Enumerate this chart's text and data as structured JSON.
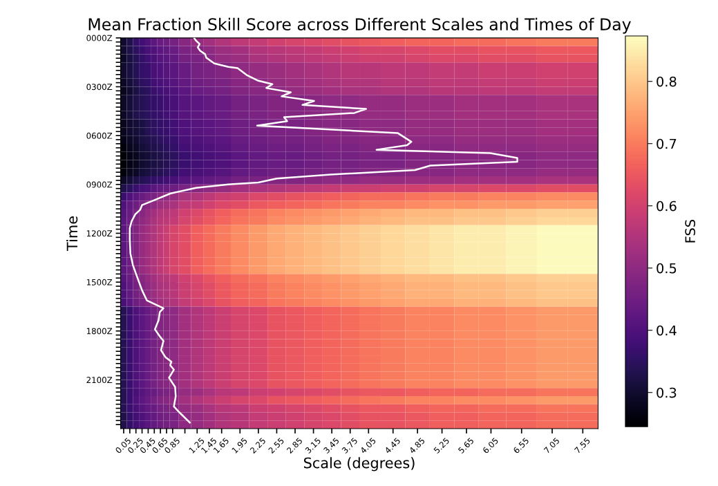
{
  "chart_data": {
    "type": "heatmap",
    "title": "Mean Fraction Skill Score across Different Scales and Times of Day",
    "xlabel": "Scale (degrees)",
    "ylabel": "Time",
    "clabel": "FSS",
    "x": [
      0.05,
      0.15,
      0.25,
      0.35,
      0.45,
      0.55,
      0.65,
      0.75,
      0.85,
      1.05,
      1.25,
      1.45,
      1.65,
      1.95,
      2.25,
      2.55,
      2.85,
      3.15,
      3.45,
      3.75,
      4.05,
      4.45,
      4.85,
      5.25,
      5.65,
      6.05,
      6.55,
      7.05,
      7.55
    ],
    "y": [
      25,
      75,
      125,
      175,
      225,
      275,
      325,
      375,
      425,
      475,
      525,
      575,
      625,
      675,
      725,
      775,
      825,
      875,
      925,
      975,
      1025,
      1075,
      1125,
      1175,
      1225,
      1275,
      1325,
      1375,
      1425,
      1475,
      1525,
      1575,
      1625,
      1675,
      1725,
      1775,
      1825,
      1875,
      1925,
      1975,
      2025,
      2075,
      2125,
      2175,
      2225,
      2275,
      2325,
      2375
    ],
    "xlim": [
      0,
      7.8
    ],
    "ylim": [
      2400,
      0
    ],
    "xticks": [
      0.05,
      {
        "value": 0.15,
        "label": null
      },
      0.25,
      {
        "value": 0.35,
        "label": null
      },
      0.45,
      {
        "value": 0.55,
        "label": null
      },
      0.65,
      {
        "value": 0.75,
        "label": null
      },
      0.85,
      {
        "value": 1.05,
        "label": null
      },
      1.25,
      1.45,
      1.65,
      1.95,
      2.25,
      2.55,
      2.85,
      3.15,
      3.45,
      3.75,
      4.05,
      4.45,
      4.85,
      5.25,
      5.65,
      6.05,
      6.55,
      7.05,
      7.55
    ],
    "yticks": [
      {
        "value": 0,
        "label": "0000Z"
      },
      {
        "value": 25,
        "label": null
      },
      {
        "value": 50,
        "label": null
      },
      {
        "value": 75,
        "label": null
      },
      {
        "value": 100,
        "label": null
      },
      {
        "value": 125,
        "label": null
      },
      {
        "value": 150,
        "label": null
      },
      {
        "value": 175,
        "label": null
      },
      {
        "value": 200,
        "label": null
      },
      {
        "value": 225,
        "label": null
      },
      {
        "value": 250,
        "label": null
      },
      {
        "value": 275,
        "label": null
      },
      {
        "value": 300,
        "label": "0300Z"
      },
      {
        "value": 325,
        "label": null
      },
      {
        "value": 350,
        "label": null
      },
      {
        "value": 375,
        "label": null
      },
      {
        "value": 400,
        "label": null
      },
      {
        "value": 425,
        "label": null
      },
      {
        "value": 450,
        "label": null
      },
      {
        "value": 475,
        "label": null
      },
      {
        "value": 500,
        "label": null
      },
      {
        "value": 525,
        "label": null
      },
      {
        "value": 550,
        "label": null
      },
      {
        "value": 575,
        "label": null
      },
      {
        "value": 600,
        "label": "0600Z"
      },
      {
        "value": 625,
        "label": null
      },
      {
        "value": 650,
        "label": null
      },
      {
        "value": 675,
        "label": null
      },
      {
        "value": 700,
        "label": null
      },
      {
        "value": 725,
        "label": null
      },
      {
        "value": 750,
        "label": null
      },
      {
        "value": 775,
        "label": null
      },
      {
        "value": 800,
        "label": null
      },
      {
        "value": 825,
        "label": null
      },
      {
        "value": 850,
        "label": null
      },
      {
        "value": 875,
        "label": null
      },
      {
        "value": 900,
        "label": "0900Z"
      },
      {
        "value": 925,
        "label": null
      },
      {
        "value": 950,
        "label": null
      },
      {
        "value": 975,
        "label": null
      },
      {
        "value": 1000,
        "label": null
      },
      {
        "value": 1025,
        "label": null
      },
      {
        "value": 1050,
        "label": null
      },
      {
        "value": 1075,
        "label": null
      },
      {
        "value": 1100,
        "label": null
      },
      {
        "value": 1125,
        "label": null
      },
      {
        "value": 1150,
        "label": null
      },
      {
        "value": 1175,
        "label": null
      },
      {
        "value": 1200,
        "label": "1200Z"
      },
      {
        "value": 1225,
        "label": null
      },
      {
        "value": 1250,
        "label": null
      },
      {
        "value": 1275,
        "label": null
      },
      {
        "value": 1300,
        "label": null
      },
      {
        "value": 1325,
        "label": null
      },
      {
        "value": 1350,
        "label": null
      },
      {
        "value": 1375,
        "label": null
      },
      {
        "value": 1400,
        "label": null
      },
      {
        "value": 1425,
        "label": null
      },
      {
        "value": 1450,
        "label": null
      },
      {
        "value": 1475,
        "label": null
      },
      {
        "value": 1500,
        "label": "1500Z"
      },
      {
        "value": 1525,
        "label": null
      },
      {
        "value": 1550,
        "label": null
      },
      {
        "value": 1575,
        "label": null
      },
      {
        "value": 1600,
        "label": null
      },
      {
        "value": 1625,
        "label": null
      },
      {
        "value": 1650,
        "label": null
      },
      {
        "value": 1675,
        "label": null
      },
      {
        "value": 1700,
        "label": null
      },
      {
        "value": 1725,
        "label": null
      },
      {
        "value": 1750,
        "label": null
      },
      {
        "value": 1775,
        "label": null
      },
      {
        "value": 1800,
        "label": "1800Z"
      },
      {
        "value": 1825,
        "label": null
      },
      {
        "value": 1850,
        "label": null
      },
      {
        "value": 1875,
        "label": null
      },
      {
        "value": 1900,
        "label": null
      },
      {
        "value": 1925,
        "label": null
      },
      {
        "value": 1950,
        "label": null
      },
      {
        "value": 1975,
        "label": null
      },
      {
        "value": 2000,
        "label": null
      },
      {
        "value": 2025,
        "label": null
      },
      {
        "value": 2050,
        "label": null
      },
      {
        "value": 2075,
        "label": null
      },
      {
        "value": 2100,
        "label": "2100Z"
      },
      {
        "value": 2125,
        "label": null
      },
      {
        "value": 2150,
        "label": null
      },
      {
        "value": 2175,
        "label": null
      },
      {
        "value": 2200,
        "label": null
      },
      {
        "value": 2225,
        "label": null
      },
      {
        "value": 2250,
        "label": null
      },
      {
        "value": 2275,
        "label": null
      },
      {
        "value": 2300,
        "label": null
      },
      {
        "value": 2325,
        "label": null
      },
      {
        "value": 2350,
        "label": null
      },
      {
        "value": 2375,
        "label": null
      }
    ],
    "clim": [
      0.245,
      0.873
    ],
    "cticks": [
      0.3,
      0.4,
      0.5,
      0.6,
      0.7,
      0.8
    ],
    "cells": [
      [
        0.3,
        0.33,
        0.36,
        0.38,
        0.4,
        0.42,
        0.44,
        0.45,
        0.46,
        0.49,
        0.51,
        0.53,
        0.55,
        0.57,
        0.58,
        0.6,
        0.61,
        0.62,
        0.63,
        0.64,
        0.65,
        0.66,
        0.67,
        0.67,
        0.68,
        0.68,
        0.69,
        0.7,
        0.7
      ],
      [
        0.3,
        0.33,
        0.35,
        0.37,
        0.39,
        0.4,
        0.42,
        0.43,
        0.44,
        0.47,
        0.48,
        0.5,
        0.52,
        0.53,
        0.55,
        0.56,
        0.57,
        0.58,
        0.59,
        0.6,
        0.61,
        0.61,
        0.62,
        0.63,
        0.63,
        0.64,
        0.64,
        0.65,
        0.65
      ],
      [
        0.29,
        0.32,
        0.34,
        0.36,
        0.38,
        0.39,
        0.41,
        0.42,
        0.43,
        0.46,
        0.47,
        0.49,
        0.51,
        0.52,
        0.54,
        0.55,
        0.56,
        0.57,
        0.58,
        0.59,
        0.6,
        0.6,
        0.61,
        0.62,
        0.62,
        0.63,
        0.63,
        0.64,
        0.64
      ],
      [
        0.3,
        0.32,
        0.34,
        0.36,
        0.37,
        0.39,
        0.4,
        0.41,
        0.42,
        0.44,
        0.46,
        0.47,
        0.48,
        0.5,
        0.51,
        0.52,
        0.53,
        0.54,
        0.55,
        0.56,
        0.56,
        0.57,
        0.57,
        0.58,
        0.58,
        0.59,
        0.59,
        0.6,
        0.6
      ],
      [
        0.3,
        0.32,
        0.34,
        0.36,
        0.37,
        0.39,
        0.4,
        0.41,
        0.42,
        0.44,
        0.46,
        0.47,
        0.48,
        0.5,
        0.51,
        0.52,
        0.53,
        0.54,
        0.55,
        0.56,
        0.56,
        0.57,
        0.57,
        0.58,
        0.58,
        0.59,
        0.59,
        0.6,
        0.6
      ],
      [
        0.29,
        0.31,
        0.33,
        0.35,
        0.36,
        0.38,
        0.39,
        0.4,
        0.41,
        0.43,
        0.45,
        0.46,
        0.47,
        0.49,
        0.5,
        0.51,
        0.52,
        0.53,
        0.54,
        0.55,
        0.55,
        0.56,
        0.56,
        0.57,
        0.57,
        0.58,
        0.58,
        0.59,
        0.59
      ],
      [
        0.28,
        0.3,
        0.32,
        0.34,
        0.35,
        0.37,
        0.38,
        0.39,
        0.4,
        0.42,
        0.44,
        0.45,
        0.46,
        0.48,
        0.49,
        0.5,
        0.51,
        0.52,
        0.53,
        0.54,
        0.54,
        0.55,
        0.55,
        0.56,
        0.56,
        0.57,
        0.57,
        0.58,
        0.58
      ],
      [
        0.29,
        0.31,
        0.33,
        0.34,
        0.35,
        0.36,
        0.37,
        0.38,
        0.39,
        0.41,
        0.42,
        0.43,
        0.44,
        0.46,
        0.47,
        0.48,
        0.48,
        0.49,
        0.5,
        0.5,
        0.51,
        0.51,
        0.52,
        0.52,
        0.53,
        0.53,
        0.53,
        0.54,
        0.54
      ],
      [
        0.29,
        0.31,
        0.33,
        0.34,
        0.35,
        0.36,
        0.37,
        0.38,
        0.39,
        0.41,
        0.42,
        0.43,
        0.44,
        0.46,
        0.47,
        0.48,
        0.48,
        0.49,
        0.5,
        0.5,
        0.51,
        0.51,
        0.52,
        0.52,
        0.53,
        0.53,
        0.53,
        0.54,
        0.54
      ],
      [
        0.29,
        0.31,
        0.33,
        0.34,
        0.35,
        0.36,
        0.37,
        0.38,
        0.39,
        0.41,
        0.42,
        0.43,
        0.44,
        0.46,
        0.47,
        0.48,
        0.48,
        0.49,
        0.5,
        0.5,
        0.51,
        0.51,
        0.52,
        0.52,
        0.53,
        0.53,
        0.53,
        0.54,
        0.54
      ],
      [
        0.28,
        0.3,
        0.31,
        0.32,
        0.34,
        0.35,
        0.36,
        0.37,
        0.38,
        0.4,
        0.41,
        0.42,
        0.43,
        0.45,
        0.46,
        0.47,
        0.47,
        0.48,
        0.49,
        0.49,
        0.5,
        0.5,
        0.51,
        0.51,
        0.52,
        0.52,
        0.52,
        0.53,
        0.53
      ],
      [
        0.28,
        0.3,
        0.31,
        0.32,
        0.34,
        0.35,
        0.36,
        0.37,
        0.38,
        0.4,
        0.41,
        0.42,
        0.43,
        0.45,
        0.46,
        0.47,
        0.47,
        0.48,
        0.49,
        0.49,
        0.5,
        0.5,
        0.51,
        0.51,
        0.52,
        0.52,
        0.52,
        0.53,
        0.53
      ],
      [
        0.27,
        0.29,
        0.3,
        0.32,
        0.33,
        0.34,
        0.35,
        0.36,
        0.37,
        0.39,
        0.4,
        0.41,
        0.42,
        0.44,
        0.45,
        0.46,
        0.46,
        0.47,
        0.48,
        0.48,
        0.49,
        0.49,
        0.5,
        0.5,
        0.51,
        0.51,
        0.51,
        0.52,
        0.52
      ],
      [
        0.26,
        0.28,
        0.29,
        0.31,
        0.32,
        0.33,
        0.34,
        0.35,
        0.36,
        0.38,
        0.39,
        0.4,
        0.41,
        0.43,
        0.44,
        0.45,
        0.45,
        0.46,
        0.47,
        0.47,
        0.48,
        0.48,
        0.49,
        0.49,
        0.5,
        0.5,
        0.5,
        0.51,
        0.51
      ],
      [
        0.25,
        0.27,
        0.28,
        0.3,
        0.31,
        0.32,
        0.33,
        0.34,
        0.35,
        0.37,
        0.38,
        0.39,
        0.4,
        0.42,
        0.43,
        0.44,
        0.44,
        0.45,
        0.46,
        0.46,
        0.47,
        0.47,
        0.48,
        0.48,
        0.49,
        0.49,
        0.49,
        0.5,
        0.5
      ],
      [
        0.25,
        0.27,
        0.28,
        0.3,
        0.31,
        0.32,
        0.33,
        0.34,
        0.35,
        0.37,
        0.38,
        0.39,
        0.4,
        0.42,
        0.43,
        0.44,
        0.44,
        0.45,
        0.46,
        0.46,
        0.47,
        0.47,
        0.48,
        0.48,
        0.49,
        0.49,
        0.49,
        0.5,
        0.5
      ],
      [
        0.26,
        0.28,
        0.29,
        0.31,
        0.32,
        0.33,
        0.34,
        0.35,
        0.36,
        0.38,
        0.39,
        0.4,
        0.41,
        0.43,
        0.44,
        0.45,
        0.45,
        0.46,
        0.47,
        0.47,
        0.48,
        0.48,
        0.49,
        0.49,
        0.5,
        0.5,
        0.5,
        0.51,
        0.51
      ],
      [
        0.29,
        0.31,
        0.33,
        0.34,
        0.35,
        0.36,
        0.37,
        0.38,
        0.39,
        0.41,
        0.42,
        0.43,
        0.44,
        0.46,
        0.47,
        0.48,
        0.48,
        0.49,
        0.5,
        0.5,
        0.51,
        0.51,
        0.52,
        0.52,
        0.53,
        0.53,
        0.53,
        0.54,
        0.54
      ],
      [
        0.33,
        0.35,
        0.37,
        0.39,
        0.4,
        0.42,
        0.43,
        0.44,
        0.45,
        0.47,
        0.49,
        0.5,
        0.51,
        0.53,
        0.54,
        0.55,
        0.56,
        0.57,
        0.58,
        0.59,
        0.59,
        0.6,
        0.6,
        0.61,
        0.61,
        0.62,
        0.62,
        0.63,
        0.63
      ],
      [
        0.37,
        0.4,
        0.42,
        0.44,
        0.46,
        0.47,
        0.49,
        0.5,
        0.51,
        0.54,
        0.55,
        0.57,
        0.59,
        0.6,
        0.62,
        0.63,
        0.64,
        0.65,
        0.66,
        0.67,
        0.68,
        0.68,
        0.69,
        0.7,
        0.7,
        0.71,
        0.71,
        0.72,
        0.72
      ],
      [
        0.4,
        0.43,
        0.45,
        0.47,
        0.49,
        0.5,
        0.52,
        0.53,
        0.54,
        0.57,
        0.58,
        0.6,
        0.62,
        0.63,
        0.65,
        0.66,
        0.67,
        0.68,
        0.69,
        0.7,
        0.71,
        0.71,
        0.72,
        0.73,
        0.73,
        0.74,
        0.74,
        0.75,
        0.75
      ],
      [
        0.41,
        0.44,
        0.47,
        0.49,
        0.51,
        0.53,
        0.55,
        0.56,
        0.57,
        0.6,
        0.62,
        0.64,
        0.66,
        0.68,
        0.69,
        0.71,
        0.72,
        0.73,
        0.74,
        0.75,
        0.76,
        0.77,
        0.78,
        0.78,
        0.79,
        0.79,
        0.8,
        0.81,
        0.81
      ],
      [
        0.42,
        0.45,
        0.48,
        0.5,
        0.52,
        0.54,
        0.56,
        0.57,
        0.58,
        0.61,
        0.63,
        0.65,
        0.67,
        0.69,
        0.7,
        0.72,
        0.73,
        0.74,
        0.75,
        0.76,
        0.77,
        0.78,
        0.79,
        0.79,
        0.8,
        0.8,
        0.81,
        0.82,
        0.82
      ],
      [
        0.42,
        0.45,
        0.48,
        0.51,
        0.53,
        0.55,
        0.57,
        0.59,
        0.61,
        0.63,
        0.66,
        0.68,
        0.7,
        0.72,
        0.74,
        0.76,
        0.77,
        0.78,
        0.79,
        0.8,
        0.81,
        0.82,
        0.83,
        0.84,
        0.85,
        0.85,
        0.86,
        0.87,
        0.87
      ],
      [
        0.42,
        0.45,
        0.48,
        0.51,
        0.53,
        0.55,
        0.57,
        0.59,
        0.61,
        0.63,
        0.66,
        0.68,
        0.7,
        0.72,
        0.74,
        0.76,
        0.77,
        0.78,
        0.79,
        0.8,
        0.81,
        0.82,
        0.83,
        0.84,
        0.85,
        0.85,
        0.86,
        0.87,
        0.87
      ],
      [
        0.42,
        0.45,
        0.48,
        0.51,
        0.53,
        0.55,
        0.57,
        0.59,
        0.61,
        0.63,
        0.66,
        0.68,
        0.7,
        0.72,
        0.74,
        0.76,
        0.77,
        0.78,
        0.79,
        0.8,
        0.81,
        0.82,
        0.83,
        0.84,
        0.85,
        0.85,
        0.86,
        0.87,
        0.87
      ],
      [
        0.42,
        0.45,
        0.48,
        0.51,
        0.53,
        0.55,
        0.57,
        0.59,
        0.61,
        0.63,
        0.66,
        0.68,
        0.7,
        0.72,
        0.74,
        0.76,
        0.77,
        0.78,
        0.79,
        0.8,
        0.81,
        0.82,
        0.83,
        0.84,
        0.85,
        0.85,
        0.86,
        0.87,
        0.87
      ],
      [
        0.42,
        0.45,
        0.48,
        0.51,
        0.53,
        0.55,
        0.57,
        0.59,
        0.61,
        0.63,
        0.66,
        0.68,
        0.7,
        0.72,
        0.74,
        0.76,
        0.77,
        0.78,
        0.79,
        0.8,
        0.81,
        0.82,
        0.83,
        0.84,
        0.85,
        0.85,
        0.86,
        0.87,
        0.87
      ],
      [
        0.42,
        0.45,
        0.48,
        0.51,
        0.53,
        0.55,
        0.57,
        0.59,
        0.61,
        0.63,
        0.66,
        0.68,
        0.7,
        0.72,
        0.74,
        0.76,
        0.77,
        0.78,
        0.79,
        0.8,
        0.81,
        0.82,
        0.83,
        0.84,
        0.85,
        0.85,
        0.86,
        0.87,
        0.87
      ],
      [
        0.41,
        0.44,
        0.47,
        0.49,
        0.51,
        0.53,
        0.55,
        0.56,
        0.57,
        0.6,
        0.62,
        0.64,
        0.66,
        0.68,
        0.69,
        0.71,
        0.72,
        0.73,
        0.74,
        0.75,
        0.76,
        0.77,
        0.78,
        0.78,
        0.79,
        0.79,
        0.8,
        0.81,
        0.81
      ],
      [
        0.4,
        0.43,
        0.46,
        0.48,
        0.5,
        0.52,
        0.54,
        0.55,
        0.56,
        0.59,
        0.61,
        0.63,
        0.65,
        0.67,
        0.68,
        0.7,
        0.71,
        0.72,
        0.73,
        0.74,
        0.75,
        0.76,
        0.77,
        0.77,
        0.78,
        0.78,
        0.79,
        0.8,
        0.8
      ],
      [
        0.4,
        0.43,
        0.46,
        0.48,
        0.5,
        0.52,
        0.54,
        0.55,
        0.56,
        0.59,
        0.61,
        0.63,
        0.65,
        0.67,
        0.68,
        0.7,
        0.71,
        0.72,
        0.73,
        0.74,
        0.75,
        0.76,
        0.77,
        0.77,
        0.78,
        0.78,
        0.79,
        0.8,
        0.8
      ],
      [
        0.39,
        0.42,
        0.45,
        0.47,
        0.49,
        0.51,
        0.53,
        0.54,
        0.55,
        0.58,
        0.6,
        0.62,
        0.64,
        0.66,
        0.67,
        0.69,
        0.7,
        0.71,
        0.72,
        0.73,
        0.74,
        0.75,
        0.76,
        0.76,
        0.77,
        0.77,
        0.78,
        0.79,
        0.79
      ],
      [
        0.34,
        0.37,
        0.4,
        0.42,
        0.44,
        0.46,
        0.48,
        0.49,
        0.5,
        0.53,
        0.55,
        0.57,
        0.59,
        0.61,
        0.62,
        0.64,
        0.65,
        0.66,
        0.67,
        0.68,
        0.69,
        0.7,
        0.71,
        0.71,
        0.72,
        0.72,
        0.73,
        0.74,
        0.74
      ],
      [
        0.34,
        0.37,
        0.4,
        0.42,
        0.44,
        0.46,
        0.48,
        0.49,
        0.5,
        0.53,
        0.55,
        0.57,
        0.59,
        0.61,
        0.62,
        0.64,
        0.65,
        0.66,
        0.67,
        0.68,
        0.69,
        0.7,
        0.71,
        0.71,
        0.72,
        0.72,
        0.73,
        0.74,
        0.74
      ],
      [
        0.34,
        0.37,
        0.4,
        0.42,
        0.44,
        0.46,
        0.48,
        0.49,
        0.5,
        0.53,
        0.55,
        0.57,
        0.59,
        0.61,
        0.62,
        0.64,
        0.65,
        0.66,
        0.67,
        0.68,
        0.69,
        0.7,
        0.71,
        0.71,
        0.72,
        0.72,
        0.73,
        0.74,
        0.74
      ],
      [
        0.34,
        0.37,
        0.4,
        0.42,
        0.44,
        0.46,
        0.48,
        0.49,
        0.5,
        0.53,
        0.55,
        0.57,
        0.59,
        0.61,
        0.62,
        0.64,
        0.65,
        0.66,
        0.67,
        0.68,
        0.69,
        0.7,
        0.71,
        0.71,
        0.72,
        0.72,
        0.73,
        0.74,
        0.74
      ],
      [
        0.34,
        0.37,
        0.4,
        0.42,
        0.44,
        0.46,
        0.48,
        0.49,
        0.5,
        0.53,
        0.55,
        0.57,
        0.59,
        0.61,
        0.62,
        0.64,
        0.65,
        0.66,
        0.67,
        0.68,
        0.69,
        0.7,
        0.71,
        0.71,
        0.72,
        0.72,
        0.73,
        0.74,
        0.74
      ],
      [
        0.34,
        0.37,
        0.4,
        0.42,
        0.44,
        0.46,
        0.48,
        0.49,
        0.5,
        0.53,
        0.55,
        0.57,
        0.59,
        0.61,
        0.62,
        0.64,
        0.65,
        0.66,
        0.67,
        0.68,
        0.69,
        0.7,
        0.71,
        0.71,
        0.72,
        0.72,
        0.73,
        0.74,
        0.74
      ],
      [
        0.34,
        0.37,
        0.4,
        0.42,
        0.44,
        0.46,
        0.48,
        0.49,
        0.5,
        0.53,
        0.55,
        0.57,
        0.59,
        0.61,
        0.62,
        0.64,
        0.65,
        0.66,
        0.67,
        0.68,
        0.69,
        0.7,
        0.71,
        0.71,
        0.72,
        0.72,
        0.73,
        0.74,
        0.74
      ],
      [
        0.34,
        0.37,
        0.4,
        0.42,
        0.44,
        0.46,
        0.48,
        0.49,
        0.5,
        0.53,
        0.55,
        0.57,
        0.59,
        0.61,
        0.62,
        0.64,
        0.65,
        0.66,
        0.67,
        0.68,
        0.69,
        0.7,
        0.71,
        0.71,
        0.72,
        0.72,
        0.73,
        0.74,
        0.74
      ],
      [
        0.34,
        0.37,
        0.4,
        0.42,
        0.44,
        0.46,
        0.48,
        0.49,
        0.5,
        0.53,
        0.55,
        0.57,
        0.59,
        0.61,
        0.62,
        0.64,
        0.65,
        0.66,
        0.67,
        0.68,
        0.69,
        0.7,
        0.71,
        0.71,
        0.72,
        0.72,
        0.73,
        0.74,
        0.74
      ],
      [
        0.34,
        0.37,
        0.4,
        0.42,
        0.44,
        0.46,
        0.48,
        0.49,
        0.5,
        0.53,
        0.55,
        0.57,
        0.59,
        0.61,
        0.62,
        0.64,
        0.65,
        0.66,
        0.67,
        0.68,
        0.69,
        0.7,
        0.71,
        0.71,
        0.72,
        0.72,
        0.73,
        0.74,
        0.74
      ],
      [
        0.34,
        0.37,
        0.39,
        0.41,
        0.43,
        0.44,
        0.46,
        0.47,
        0.48,
        0.51,
        0.52,
        0.54,
        0.56,
        0.57,
        0.59,
        0.6,
        0.61,
        0.62,
        0.63,
        0.64,
        0.65,
        0.65,
        0.66,
        0.67,
        0.67,
        0.68,
        0.68,
        0.69,
        0.69
      ],
      [
        0.34,
        0.37,
        0.4,
        0.42,
        0.44,
        0.46,
        0.48,
        0.49,
        0.5,
        0.53,
        0.55,
        0.57,
        0.59,
        0.61,
        0.62,
        0.64,
        0.65,
        0.66,
        0.67,
        0.68,
        0.69,
        0.7,
        0.71,
        0.71,
        0.72,
        0.72,
        0.73,
        0.74,
        0.74
      ],
      [
        0.34,
        0.37,
        0.39,
        0.41,
        0.43,
        0.44,
        0.46,
        0.47,
        0.48,
        0.51,
        0.52,
        0.54,
        0.56,
        0.57,
        0.59,
        0.6,
        0.61,
        0.62,
        0.63,
        0.64,
        0.65,
        0.65,
        0.66,
        0.67,
        0.67,
        0.68,
        0.68,
        0.69,
        0.69
      ],
      [
        0.33,
        0.36,
        0.38,
        0.4,
        0.42,
        0.43,
        0.45,
        0.46,
        0.47,
        0.5,
        0.51,
        0.53,
        0.55,
        0.56,
        0.58,
        0.59,
        0.6,
        0.61,
        0.62,
        0.63,
        0.64,
        0.64,
        0.65,
        0.66,
        0.66,
        0.67,
        0.67,
        0.68,
        0.68
      ],
      [
        0.33,
        0.36,
        0.38,
        0.4,
        0.42,
        0.43,
        0.45,
        0.46,
        0.47,
        0.5,
        0.51,
        0.53,
        0.55,
        0.56,
        0.58,
        0.59,
        0.6,
        0.61,
        0.62,
        0.63,
        0.64,
        0.64,
        0.65,
        0.66,
        0.66,
        0.67,
        0.67,
        0.68,
        0.68
      ]
    ],
    "series": [
      {
        "type": "line",
        "color": "#ffffff",
        "x": [
          1.2,
          1.23,
          1.29,
          1.26,
          1.3,
          1.38,
          1.4,
          1.53,
          1.76,
          1.91,
          2.06,
          2.25,
          2.48,
          2.38,
          2.78,
          2.63,
          3.16,
          2.97,
          4.01,
          3.82,
          2.67,
          2.72,
          2.23,
          4.53,
          4.75,
          4.68,
          4.18,
          6.04,
          6.48,
          6.48,
          5.06,
          4.81,
          3.43,
          2.55,
          2.25,
          1.76,
          1.23,
          0.81,
          0.54,
          0.35,
          0.32,
          0.24,
          0.18,
          0.15,
          0.15,
          0.16,
          0.2,
          0.28,
          0.35,
          0.43,
          0.7,
          0.64,
          0.62,
          0.56,
          0.64,
          0.7,
          0.66,
          0.73,
          0.83,
          0.81,
          0.87,
          0.79,
          0.89,
          0.9,
          0.87,
          0.96,
          1.13
        ],
        "values": [
          0,
          16,
          37,
          58,
          79,
          100,
          122,
          157,
          178,
          185,
          228,
          263,
          284,
          308,
          334,
          359,
          387,
          412,
          436,
          461,
          487,
          511,
          539,
          585,
          638,
          659,
          687,
          708,
          737,
          761,
          784,
          812,
          839,
          864,
          888,
          900,
          921,
          956,
          998,
          1027,
          1055,
          1083,
          1126,
          1168,
          1239,
          1324,
          1395,
          1479,
          1550,
          1613,
          1660,
          1684,
          1734,
          1790,
          1833,
          1861,
          1918,
          1960,
          1989,
          2010,
          2038,
          2087,
          2144,
          2201,
          2264,
          2300,
          2363
        ]
      }
    ]
  }
}
